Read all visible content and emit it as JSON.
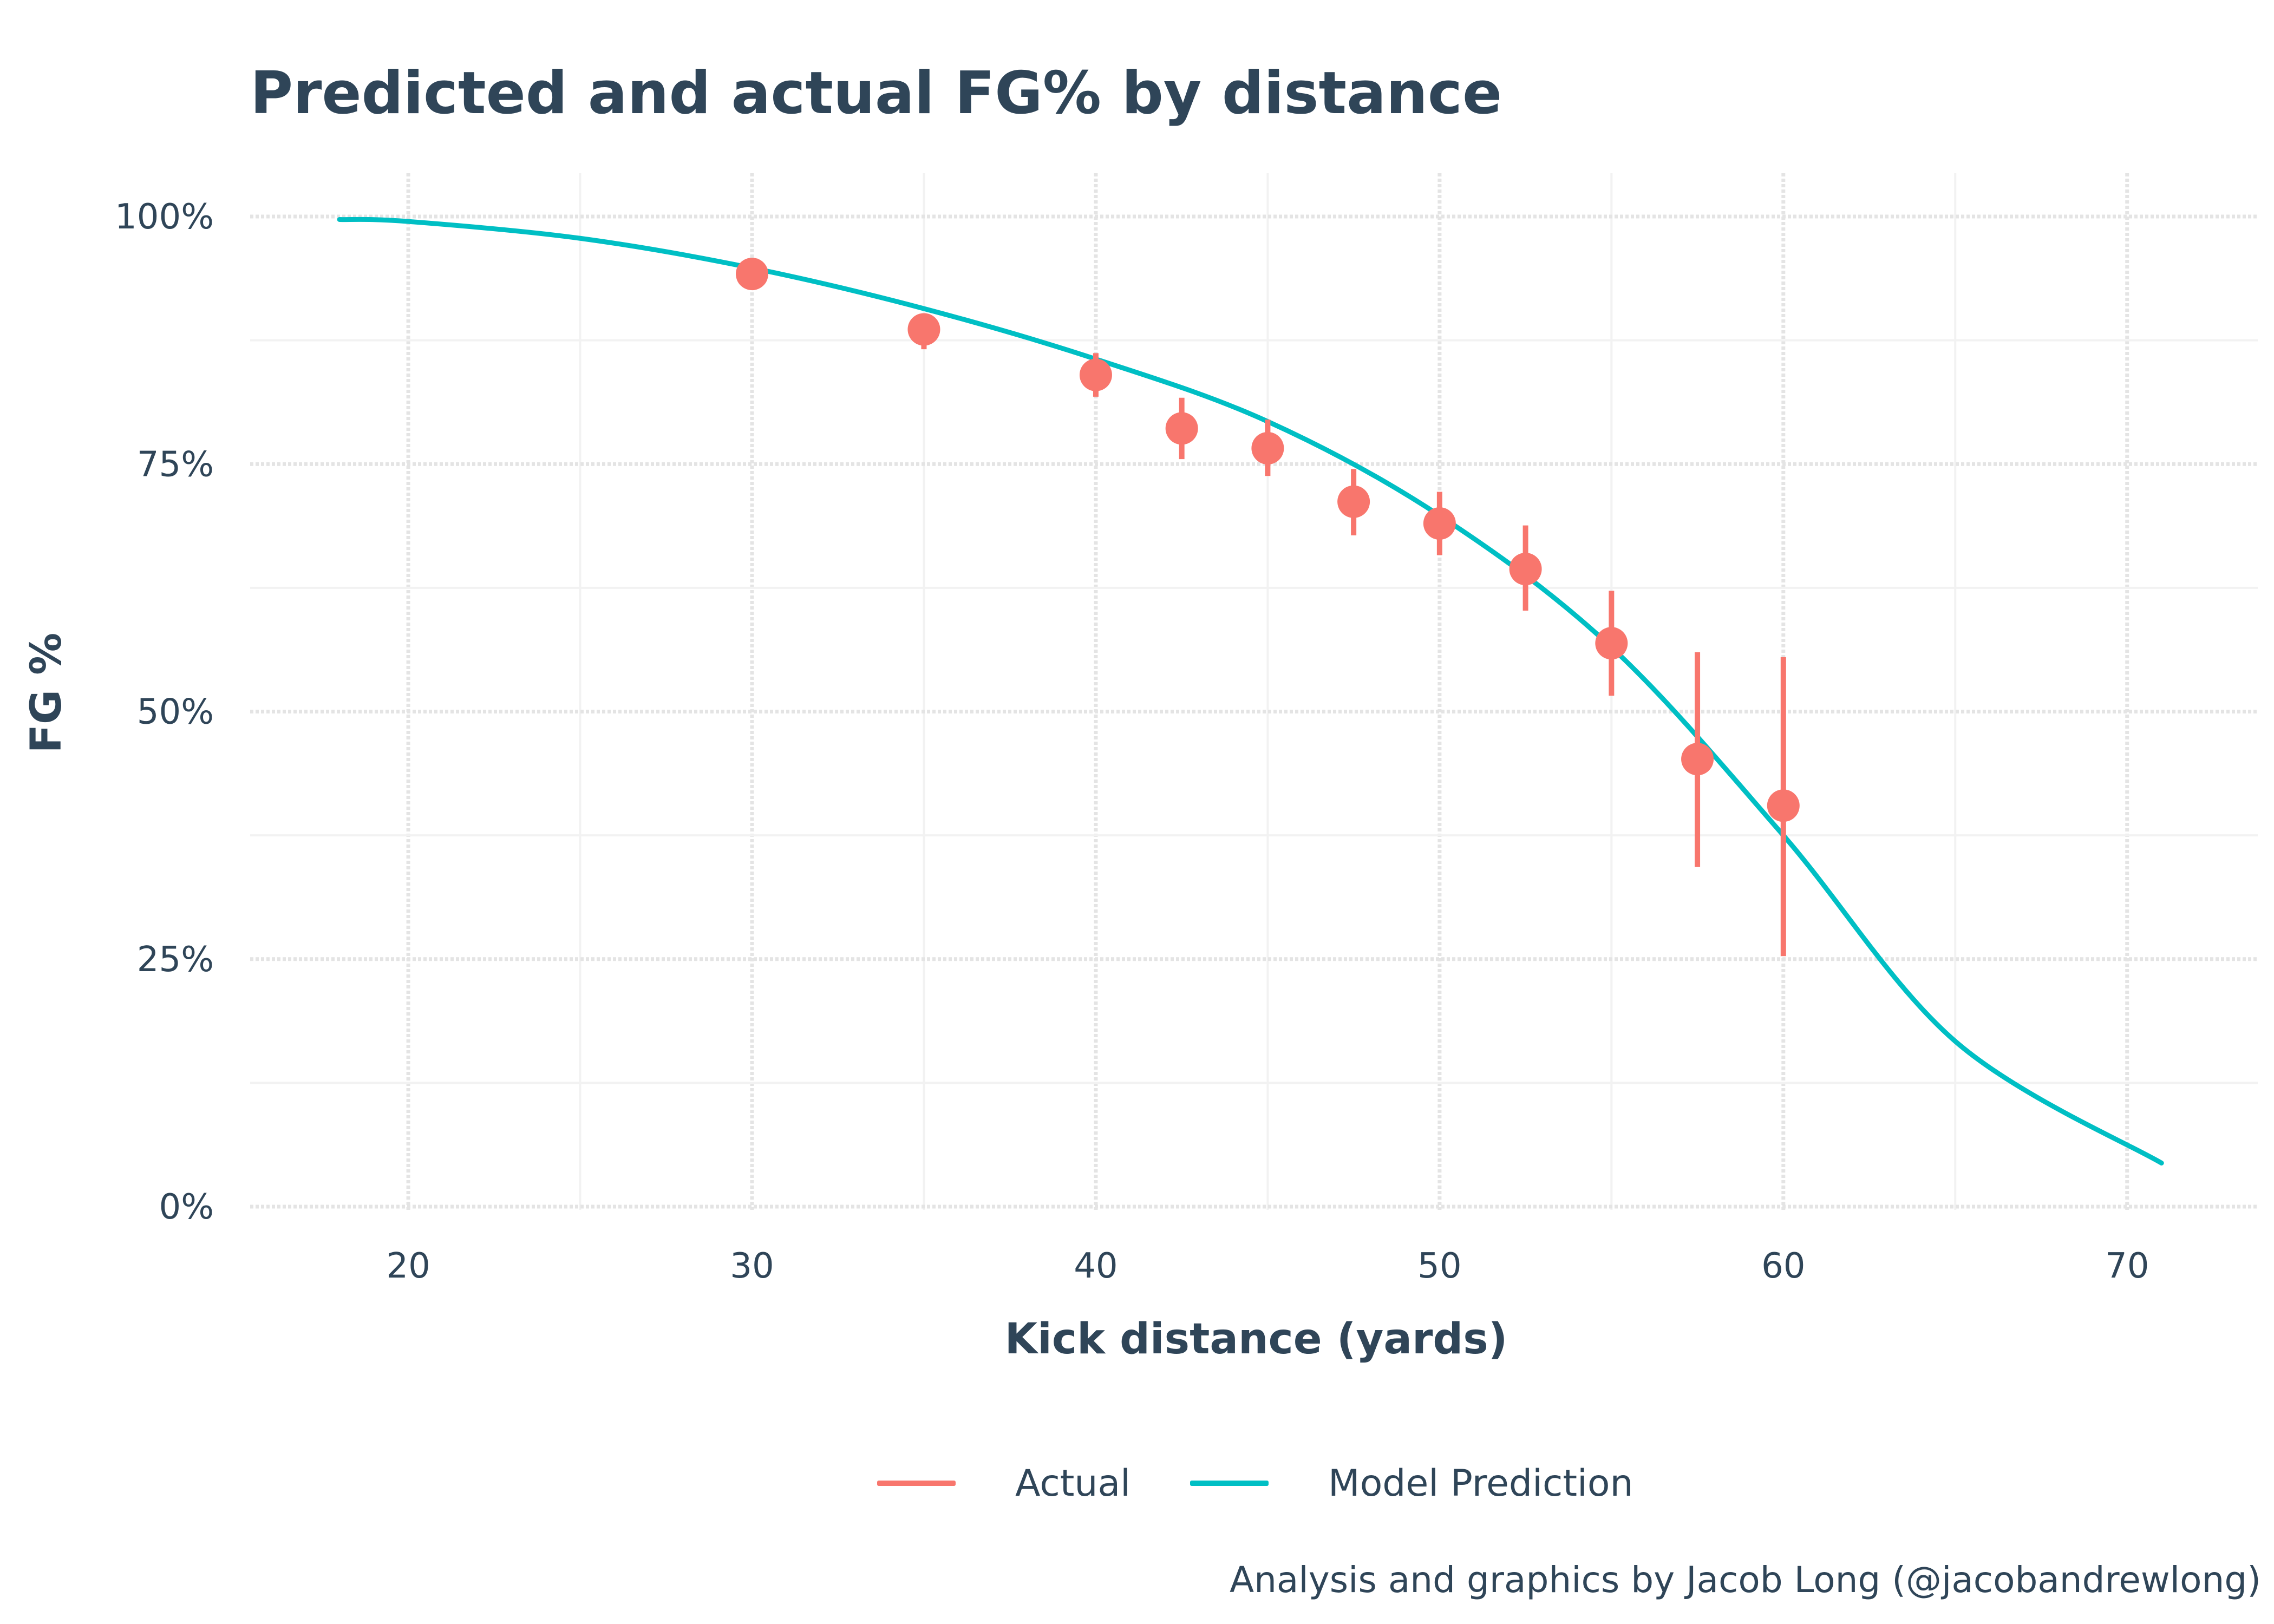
{
  "chart_data": {
    "type": "line",
    "title": "Predicted and actual FG% by distance",
    "xlabel": "Kick distance (yards)",
    "ylabel": "FG %",
    "xlim": [
      15.4,
      73.8
    ],
    "ylim": [
      0,
      1
    ],
    "x_ticks": [
      20,
      30,
      40,
      50,
      60,
      70
    ],
    "x_tick_labels": [
      "20",
      "30",
      "40",
      "50",
      "60",
      "70"
    ],
    "y_ticks": [
      0,
      0.25,
      0.5,
      0.75,
      1.0
    ],
    "y_tick_labels": [
      "0%",
      "25%",
      "50%",
      "75%",
      "100%"
    ],
    "grid": true,
    "legend_position": "bottom",
    "series": [
      {
        "name": "Actual",
        "kind": "point-range",
        "color": "#f8766d",
        "points": [
          {
            "x": 30,
            "y": 0.942,
            "lo": 0.932,
            "hi": 0.952
          },
          {
            "x": 35,
            "y": 0.886,
            "lo": 0.866,
            "hi": 0.9
          },
          {
            "x": 40,
            "y": 0.84,
            "lo": 0.818,
            "hi": 0.862
          },
          {
            "x": 42.5,
            "y": 0.786,
            "lo": 0.755,
            "hi": 0.817
          },
          {
            "x": 45,
            "y": 0.766,
            "lo": 0.738,
            "hi": 0.795
          },
          {
            "x": 47.5,
            "y": 0.712,
            "lo": 0.678,
            "hi": 0.745
          },
          {
            "x": 50,
            "y": 0.69,
            "lo": 0.658,
            "hi": 0.722
          },
          {
            "x": 52.5,
            "y": 0.644,
            "lo": 0.602,
            "hi": 0.688
          },
          {
            "x": 55,
            "y": 0.569,
            "lo": 0.516,
            "hi": 0.622
          },
          {
            "x": 57.5,
            "y": 0.452,
            "lo": 0.343,
            "hi": 0.56
          },
          {
            "x": 60,
            "y": 0.405,
            "lo": 0.253,
            "hi": 0.555
          }
        ]
      },
      {
        "name": "Model Prediction",
        "kind": "line",
        "color": "#00bfc4",
        "x": [
          18,
          20,
          25,
          30,
          35,
          40,
          45,
          50,
          55,
          60,
          65,
          71
        ],
        "y": [
          0.997,
          0.995,
          0.978,
          0.948,
          0.907,
          0.856,
          0.793,
          0.698,
          0.565,
          0.375,
          0.167,
          0.044
        ]
      }
    ]
  },
  "caption": "Analysis and graphics by Jacob Long (@jacobandrewlong)",
  "colors": {
    "text": "#2f4558",
    "grid": "#e4e4e4"
  }
}
